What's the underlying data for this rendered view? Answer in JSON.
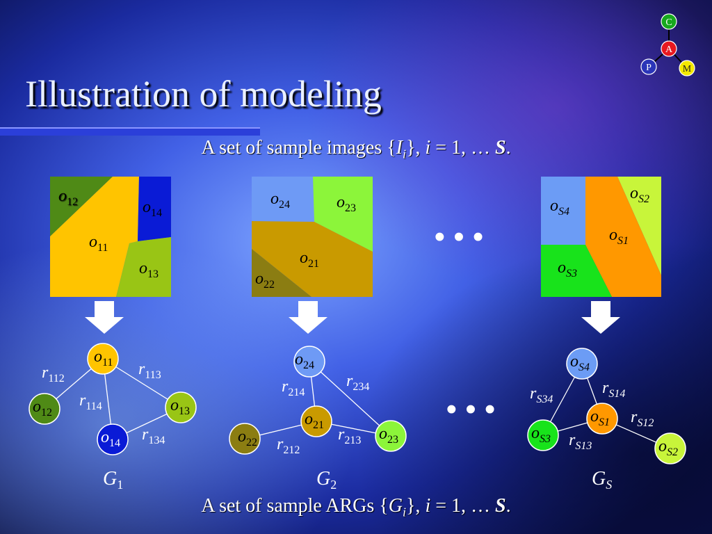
{
  "slide": {
    "title": "Illustration of modeling",
    "caption_top": {
      "prefix": "A set of sample images {",
      "var": "I",
      "sub": "i",
      "mid": "}, ",
      "index": "i",
      "range": " = 1, … ",
      "end": "S",
      "period": "."
    },
    "caption_bottom": {
      "prefix": "A set of sample ARGs {",
      "var": "G",
      "sub": "i",
      "mid": "}, ",
      "index": "i",
      "range": " = 1, … ",
      "end": "S",
      "period": "."
    },
    "ellipsis": "• • •"
  },
  "logo": {
    "nodes": [
      {
        "label": "C",
        "color": "#17a81e"
      },
      {
        "label": "A",
        "color": "#e8181f"
      },
      {
        "label": "P",
        "color": "#2a35b8"
      },
      {
        "label": "M",
        "color": "#f3e800"
      }
    ]
  },
  "images": [
    {
      "regions": [
        {
          "base": "o",
          "sub": "12",
          "color": "#4f8a16"
        },
        {
          "base": "o",
          "sub": "14",
          "color": "#0a1bd6"
        },
        {
          "base": "o",
          "sub": "11",
          "color": "#ffc400"
        },
        {
          "base": "o",
          "sub": "13",
          "color": "#99c515"
        }
      ]
    },
    {
      "regions": [
        {
          "base": "o",
          "sub": "24",
          "color": "#6e9af5"
        },
        {
          "base": "o",
          "sub": "23",
          "color": "#8cf53a"
        },
        {
          "base": "o",
          "sub": "21",
          "color": "#c99a00"
        },
        {
          "base": "o",
          "sub": "22",
          "color": "#8b7d12"
        }
      ]
    },
    {
      "regions": [
        {
          "base": "o",
          "sub": "S4",
          "color": "#6c9cf5"
        },
        {
          "base": "o",
          "sub": "S2",
          "color": "#c8f53a"
        },
        {
          "base": "o",
          "sub": "S1",
          "color": "#ff9800"
        },
        {
          "base": "o",
          "sub": "S3",
          "color": "#18e31b"
        }
      ]
    }
  ],
  "graphs": [
    {
      "name": {
        "base": "G",
        "sub": "1"
      },
      "nodes": [
        {
          "base": "o",
          "sub": "11",
          "color": "#ffc400"
        },
        {
          "base": "o",
          "sub": "12",
          "color": "#4f8a16"
        },
        {
          "base": "o",
          "sub": "13",
          "color": "#99c515"
        },
        {
          "base": "o",
          "sub": "14",
          "color": "#0a1bd6"
        }
      ],
      "edges": [
        {
          "base": "r",
          "sub": "112"
        },
        {
          "base": "r",
          "sub": "113"
        },
        {
          "base": "r",
          "sub": "114"
        },
        {
          "base": "r",
          "sub": "134"
        }
      ]
    },
    {
      "name": {
        "base": "G",
        "sub": "2"
      },
      "nodes": [
        {
          "base": "o",
          "sub": "24",
          "color": "#6e9af5"
        },
        {
          "base": "o",
          "sub": "21",
          "color": "#c99a00"
        },
        {
          "base": "o",
          "sub": "22",
          "color": "#8b7d12"
        },
        {
          "base": "o",
          "sub": "23",
          "color": "#8cf53a"
        }
      ],
      "edges": [
        {
          "base": "r",
          "sub": "214"
        },
        {
          "base": "r",
          "sub": "234"
        },
        {
          "base": "r",
          "sub": "212"
        },
        {
          "base": "r",
          "sub": "213"
        }
      ]
    },
    {
      "name": {
        "base": "G",
        "sub": "S"
      },
      "nodes": [
        {
          "base": "o",
          "sub": "S4",
          "color": "#6c9cf5"
        },
        {
          "base": "o",
          "sub": "S1",
          "color": "#ff9800"
        },
        {
          "base": "o",
          "sub": "S3",
          "color": "#18e31b"
        },
        {
          "base": "o",
          "sub": "S2",
          "color": "#c8f53a"
        }
      ],
      "edges": [
        {
          "base": "r",
          "sub": "S34"
        },
        {
          "base": "r",
          "sub": "S14"
        },
        {
          "base": "r",
          "sub": "S12"
        },
        {
          "base": "r",
          "sub": "S13"
        }
      ]
    }
  ]
}
